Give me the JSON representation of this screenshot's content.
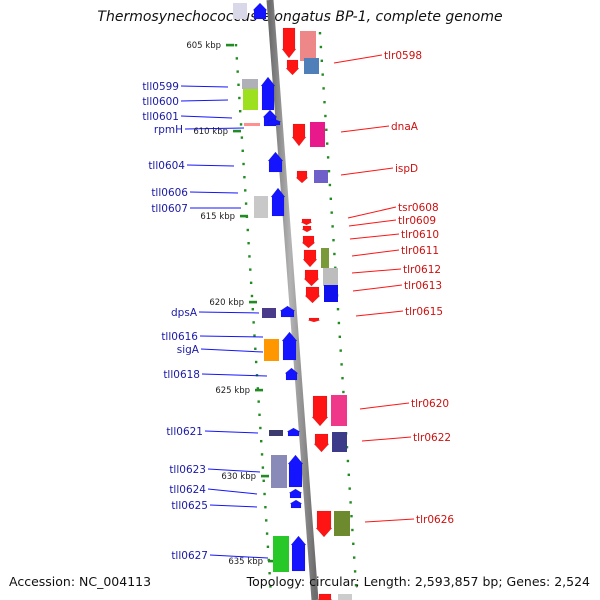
{
  "title": "Thermosynechococcus elongatus BP-1, complete genome",
  "footer": {
    "accession": "Accession: NC_004113",
    "topology": "Topology: circular; Length: 2,593,857 bp; Genes: 2,524"
  },
  "colors": {
    "reverse_strand": "#1414ff",
    "forward_strand": "#ff1414",
    "reverse_label": "#1a1aa6",
    "forward_label": "#cc1111",
    "tick": "#228b22",
    "backbone": "#8a8a8a"
  },
  "scale_labels": [
    "605 kbp",
    "610 kbp",
    "615 kbp",
    "620 kbp",
    "625 kbp",
    "630 kbp",
    "635 kbp"
  ],
  "reverse_genes": [
    "tll0599",
    "tll0600",
    "tll0601",
    "rpmH",
    "tll0604",
    "tll0606",
    "tll0607",
    "dpsA",
    "tll0616",
    "sigA",
    "tll0618",
    "tll0621",
    "tll0623",
    "tll0624",
    "tll0625",
    "tll0627"
  ],
  "forward_genes": [
    "tlr0598",
    "dnaA",
    "ispD",
    "tsr0608",
    "tlr0609",
    "tlr0610",
    "tlr0611",
    "tlr0612",
    "tlr0613",
    "tlr0615",
    "tlr0620",
    "tlr0622",
    "tlr0626"
  ]
}
